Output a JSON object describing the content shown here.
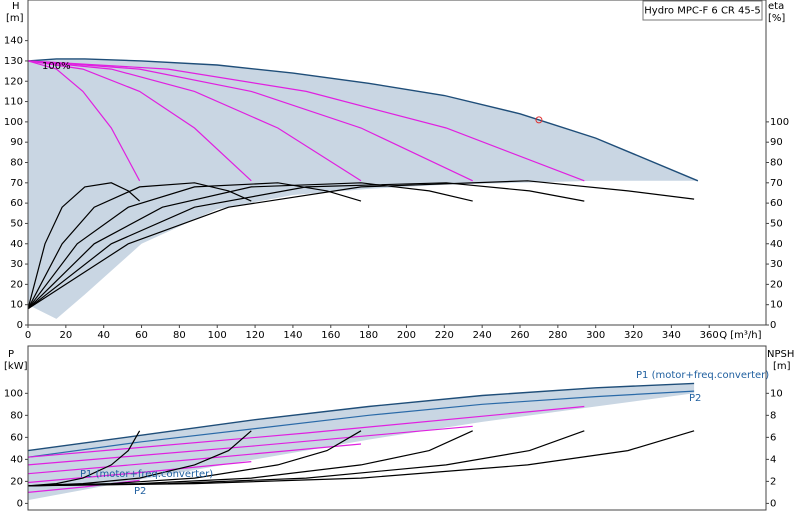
{
  "chart_data": [
    {
      "type": "line",
      "title": "Hydro MPC-F 6 CR 45-5",
      "y_label": "H",
      "y_unit": "[m]",
      "y2_label": "eta",
      "y2_unit": "[%]",
      "x_label": "Q [m³/h]",
      "xlim": [
        0,
        390
      ],
      "ylim": [
        0,
        160
      ],
      "y2lim": [
        0,
        160
      ],
      "xticks": [
        0,
        20,
        40,
        60,
        80,
        100,
        120,
        140,
        160,
        180,
        200,
        220,
        240,
        260,
        280,
        300,
        320,
        340,
        360
      ],
      "yticks": [
        0,
        10,
        20,
        30,
        40,
        50,
        60,
        70,
        80,
        90,
        100,
        110,
        120,
        130,
        140
      ],
      "y2ticks": [
        0,
        10,
        20,
        30,
        40,
        50,
        60,
        70,
        80,
        90,
        100
      ],
      "annotations": [
        {
          "text": "100%",
          "color": "#000000"
        }
      ],
      "duty_point": {
        "x": 270,
        "y": 101,
        "color": "#e03030"
      },
      "series": [
        {
          "style": "area",
          "color": "#c9d6e3",
          "line_color": "#1f4e79",
          "x": [
            0,
            15,
            30,
            60,
            100,
            140,
            180,
            220,
            260,
            300,
            354
          ],
          "values": [
            130,
            131,
            131,
            130,
            128,
            124,
            119,
            113,
            104,
            92,
            71
          ],
          "base": [
            10,
            3,
            15,
            40,
            57,
            64,
            67,
            69,
            70,
            71,
            71
          ]
        },
        {
          "color": "#e020e0",
          "x": [
            0,
            15,
            29,
            44,
            59
          ],
          "values": [
            130,
            126,
            115,
            97,
            71
          ]
        },
        {
          "color": "#e020e0",
          "x": [
            0,
            29,
            59,
            88,
            118
          ],
          "values": [
            130,
            126,
            115,
            97,
            71
          ]
        },
        {
          "color": "#e020e0",
          "x": [
            0,
            44,
            88,
            132,
            176
          ],
          "values": [
            130,
            126,
            115,
            97,
            71
          ]
        },
        {
          "color": "#e020e0",
          "x": [
            0,
            59,
            118,
            176,
            235
          ],
          "values": [
            130,
            126,
            115,
            97,
            71
          ]
        },
        {
          "color": "#e020e0",
          "x": [
            0,
            74,
            147,
            221,
            294
          ],
          "values": [
            130,
            126,
            115,
            97,
            71
          ]
        },
        {
          "color": "#000000",
          "axis": "y2",
          "x": [
            0,
            9,
            18,
            30,
            44,
            53,
            59
          ],
          "values": [
            8,
            40,
            58,
            68,
            70,
            66,
            61
          ]
        },
        {
          "color": "#000000",
          "axis": "y2",
          "x": [
            0,
            18,
            35,
            59,
            88,
            106,
            118
          ],
          "values": [
            8,
            40,
            58,
            68,
            70,
            66,
            61
          ]
        },
        {
          "color": "#000000",
          "axis": "y2",
          "x": [
            0,
            26,
            53,
            88,
            132,
            158,
            176
          ],
          "values": [
            8,
            40,
            58,
            68,
            70,
            66,
            61
          ]
        },
        {
          "color": "#000000",
          "axis": "y2",
          "x": [
            0,
            35,
            71,
            118,
            176,
            212,
            235
          ],
          "values": [
            8,
            40,
            58,
            68,
            70,
            66,
            61
          ]
        },
        {
          "color": "#000000",
          "axis": "y2",
          "x": [
            0,
            44,
            88,
            147,
            221,
            265,
            294
          ],
          "values": [
            8,
            40,
            58,
            68,
            70,
            66,
            61
          ]
        },
        {
          "color": "#000000",
          "axis": "y2",
          "x": [
            0,
            53,
            106,
            176,
            264,
            317,
            352
          ],
          "values": [
            8,
            40,
            58,
            68,
            71,
            66,
            62
          ]
        }
      ]
    },
    {
      "type": "line",
      "y_label": "P",
      "y_unit": "[kW]",
      "y2_label": "NPSH",
      "y2_unit": "[m]",
      "xlim": [
        0,
        390
      ],
      "ylim": [
        -6,
        143
      ],
      "y2lim": [
        -0.6,
        14.3
      ],
      "yticks": [
        0,
        20,
        40,
        60,
        80,
        100
      ],
      "y2ticks": [
        0,
        2,
        4,
        6,
        8,
        10
      ],
      "annotations": [
        {
          "text": "P1 (motor+freq.converter)",
          "color": "#1f5f9f"
        },
        {
          "text": "P2",
          "color": "#1f5f9f"
        },
        {
          "text": "P1 (motor+freq.converter)",
          "color": "#1f5f9f"
        },
        {
          "text": "P2",
          "color": "#1f5f9f"
        }
      ],
      "series": [
        {
          "style": "area",
          "color": "#c9d6e3",
          "line_color": "#1f4e79",
          "x": [
            0,
            60,
            120,
            180,
            240,
            300,
            352
          ],
          "values": [
            48,
            62,
            76,
            88,
            98,
            105,
            109
          ],
          "base": [
            3,
            22,
            40,
            58,
            74,
            88,
            100
          ]
        },
        {
          "color": "#2a6aa8",
          "x": [
            0,
            60,
            120,
            180,
            240,
            300,
            352
          ],
          "values": [
            42,
            56,
            68,
            80,
            90,
            97,
            102
          ]
        },
        {
          "color": "#e020e0",
          "x": [
            0,
            30,
            59
          ],
          "values": [
            10,
            15,
            21
          ]
        },
        {
          "color": "#e020e0",
          "x": [
            0,
            59,
            118
          ],
          "values": [
            19,
            28,
            38
          ]
        },
        {
          "color": "#e020e0",
          "x": [
            0,
            88,
            176
          ],
          "values": [
            27,
            40,
            54
          ]
        },
        {
          "color": "#e020e0",
          "x": [
            0,
            118,
            235
          ],
          "values": [
            35,
            52,
            70
          ]
        },
        {
          "color": "#e020e0",
          "x": [
            0,
            147,
            294
          ],
          "values": [
            42,
            64,
            88
          ]
        },
        {
          "color": "#000000",
          "axis": "y2",
          "x": [
            0,
            15,
            29,
            44,
            53,
            59
          ],
          "values": [
            1.6,
            1.8,
            2.3,
            3.5,
            4.8,
            6.6
          ]
        },
        {
          "color": "#000000",
          "axis": "y2",
          "x": [
            0,
            29,
            59,
            88,
            106,
            118
          ],
          "values": [
            1.6,
            1.8,
            2.3,
            3.5,
            4.8,
            6.6
          ]
        },
        {
          "color": "#000000",
          "axis": "y2",
          "x": [
            0,
            44,
            88,
            132,
            158,
            176
          ],
          "values": [
            1.6,
            1.8,
            2.3,
            3.5,
            4.8,
            6.6
          ]
        },
        {
          "color": "#000000",
          "axis": "y2",
          "x": [
            0,
            59,
            118,
            176,
            212,
            235
          ],
          "values": [
            1.6,
            1.8,
            2.3,
            3.5,
            4.8,
            6.6
          ]
        },
        {
          "color": "#000000",
          "axis": "y2",
          "x": [
            0,
            74,
            147,
            221,
            265,
            294
          ],
          "values": [
            1.6,
            1.8,
            2.3,
            3.5,
            4.8,
            6.6
          ]
        },
        {
          "color": "#000000",
          "axis": "y2",
          "x": [
            0,
            88,
            176,
            264,
            317,
            352
          ],
          "values": [
            1.6,
            1.8,
            2.3,
            3.5,
            4.8,
            6.6
          ]
        }
      ]
    }
  ]
}
